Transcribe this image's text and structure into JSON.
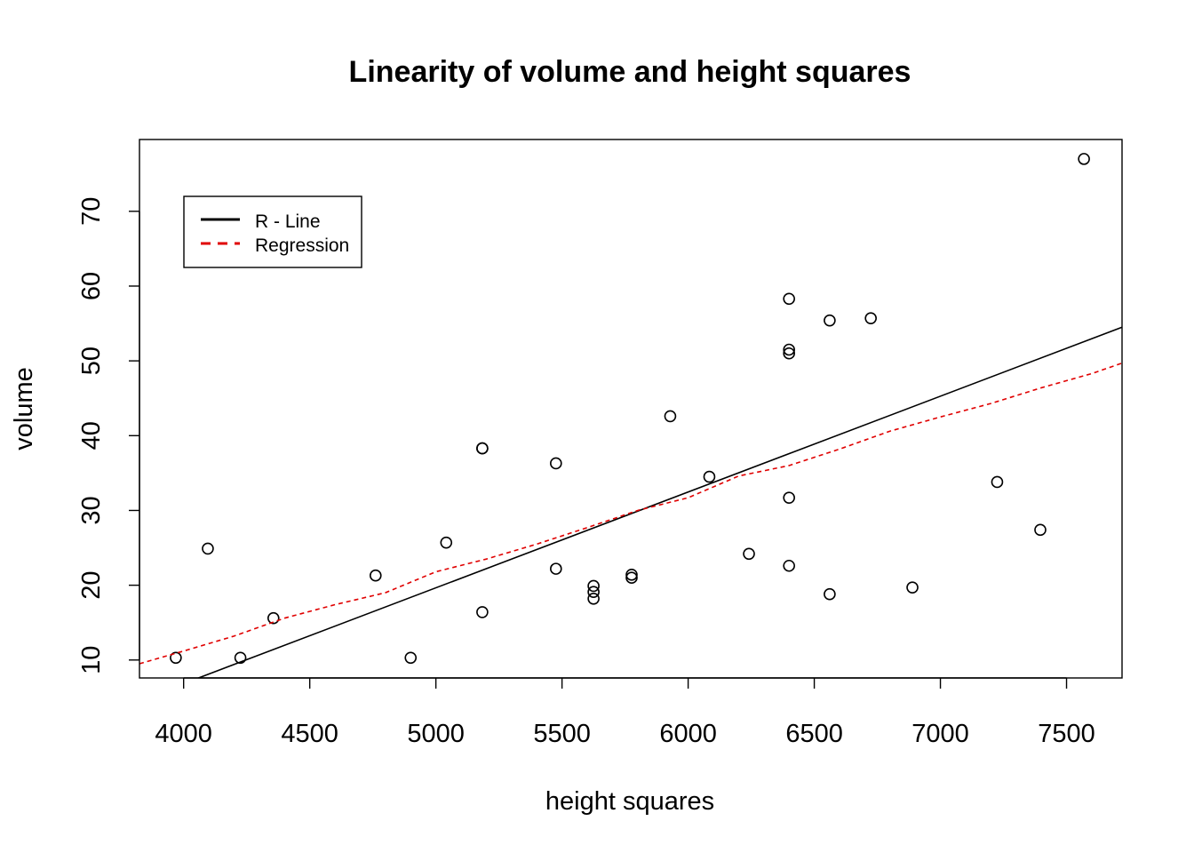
{
  "chart_data": {
    "type": "scatter",
    "title": "Linearity of volume and height squares",
    "xlabel": "height squares",
    "ylabel": "volume",
    "xlim": [
      3825,
      7720
    ],
    "ylim": [
      7.6,
      79.6
    ],
    "xticks": [
      4000,
      4500,
      5000,
      5500,
      6000,
      6500,
      7000,
      7500
    ],
    "yticks": [
      10,
      20,
      30,
      40,
      50,
      60,
      70
    ],
    "grid": false,
    "legend_position": "top-left",
    "legend": [
      {
        "label": "R - Line",
        "color": "#000000",
        "style": "solid"
      },
      {
        "label": "Regression",
        "color": "#e00000",
        "style": "dashed"
      }
    ],
    "points": {
      "x": [
        3969,
        4096,
        4225,
        4356,
        4761,
        4900,
        5041,
        5184,
        5184,
        5184,
        5476,
        5476,
        5625,
        5625,
        5625,
        5776,
        5776,
        5929,
        6084,
        6241,
        6400,
        6400,
        6400,
        6400,
        6400,
        6561,
        6561,
        6724,
        6889,
        7225,
        7396,
        7569
      ],
      "y": [
        10.3,
        24.9,
        10.3,
        15.6,
        21.3,
        10.3,
        25.7,
        16.4,
        38.3,
        38.3,
        36.3,
        22.2,
        19.9,
        19.1,
        18.2,
        21.0,
        21.4,
        42.6,
        34.5,
        24.2,
        58.3,
        51.5,
        51.0,
        31.7,
        22.6,
        55.4,
        18.8,
        55.7,
        19.7,
        33.8,
        27.4,
        77.0
      ]
    },
    "r_line": {
      "x": [
        3825,
        7720
      ],
      "y": [
        4.6,
        54.5
      ]
    },
    "regression": {
      "x": [
        3825,
        4000,
        4200,
        4400,
        4600,
        4800,
        5000,
        5200,
        5400,
        5600,
        5800,
        6000,
        6200,
        6400,
        6600,
        6800,
        7000,
        7200,
        7400,
        7600,
        7720
      ],
      "y": [
        9.5,
        11.2,
        13.2,
        15.6,
        17.4,
        19.0,
        21.8,
        23.5,
        25.5,
        27.7,
        30.0,
        31.7,
        34.6,
        36.0,
        38.2,
        40.6,
        42.5,
        44.3,
        46.4,
        48.3,
        49.7
      ]
    }
  }
}
